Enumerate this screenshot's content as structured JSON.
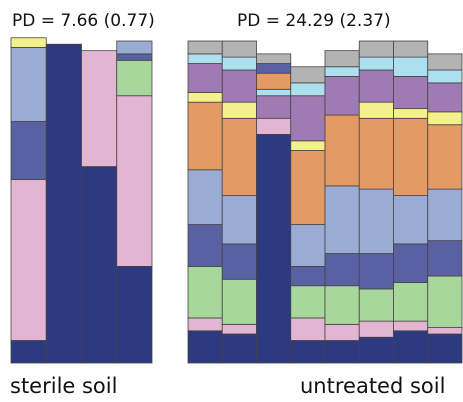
{
  "chart_data": [
    {
      "type": "bar",
      "title": "PD = 7.66 (0.77)",
      "xlabel": "sterile soil",
      "layers": [
        {
          "color": "#2e3a7f",
          "values": [
            0.07,
            0.99,
            0.61,
            0.3
          ]
        },
        {
          "color": "#e2b5d3",
          "values": [
            0.5,
            0.0,
            0.36,
            0.53
          ]
        },
        {
          "color": "#5961a3",
          "values": [
            0.18,
            0.0,
            0.0,
            0.0
          ]
        },
        {
          "color": "#9bacd4",
          "values": [
            0.23,
            0.0,
            0.0,
            0.0
          ]
        },
        {
          "color": "#a8d79b",
          "values": [
            0.0,
            0.0,
            0.0,
            0.11
          ]
        },
        {
          "color": "#5961a3",
          "values": [
            0.0,
            0.0,
            0.0,
            0.02
          ]
        },
        {
          "color": "#9bacd4",
          "values": [
            0.0,
            0.0,
            0.0,
            0.04
          ]
        },
        {
          "color": "#f5f08e",
          "values": [
            0.03,
            0.0,
            0.0,
            0.0
          ]
        }
      ]
    },
    {
      "type": "bar",
      "title": "PD = 24.29 (2.37)",
      "xlabel": "untreated soil",
      "layers": [
        {
          "color": "#2e3a7f",
          "values": [
            0.1,
            0.09,
            0.71,
            0.07,
            0.07,
            0.08,
            0.1,
            0.09
          ]
        },
        {
          "color": "#e2b5d3",
          "values": [
            0.04,
            0.03,
            0.05,
            0.07,
            0.05,
            0.05,
            0.03,
            0.02
          ]
        },
        {
          "color": "#a8d79b",
          "values": [
            0.16,
            0.14,
            0.0,
            0.1,
            0.12,
            0.1,
            0.12,
            0.16
          ]
        },
        {
          "color": "#5961a3",
          "values": [
            0.13,
            0.11,
            0.0,
            0.06,
            0.1,
            0.11,
            0.12,
            0.11
          ]
        },
        {
          "color": "#9bacd4",
          "values": [
            0.17,
            0.15,
            0.0,
            0.13,
            0.21,
            0.2,
            0.15,
            0.16
          ]
        },
        {
          "color": "#e39a64",
          "values": [
            0.21,
            0.24,
            0.0,
            0.23,
            0.22,
            0.22,
            0.24,
            0.2
          ]
        },
        {
          "color": "#f5f08e",
          "values": [
            0.03,
            0.05,
            0.0,
            0.03,
            0.0,
            0.05,
            0.03,
            0.04
          ]
        },
        {
          "color": "#a07ab3",
          "values": [
            0.09,
            0.1,
            0.07,
            0.14,
            0.12,
            0.1,
            0.1,
            0.09
          ]
        },
        {
          "color": "#ace0ef",
          "values": [
            0.03,
            0.04,
            0.02,
            0.04,
            0.03,
            0.04,
            0.06,
            0.04
          ]
        },
        {
          "color": "#e39a64",
          "values": [
            0.0,
            0.0,
            0.05,
            0.0,
            0.0,
            0.0,
            0.0,
            0.0
          ]
        },
        {
          "color": "#5961a3",
          "values": [
            0.0,
            0.0,
            0.03,
            0.0,
            0.0,
            0.0,
            0.0,
            0.0
          ]
        },
        {
          "color": "#b3b3b3",
          "values": [
            0.04,
            0.05,
            0.03,
            0.05,
            0.05,
            0.05,
            0.05,
            0.05
          ]
        }
      ]
    }
  ]
}
